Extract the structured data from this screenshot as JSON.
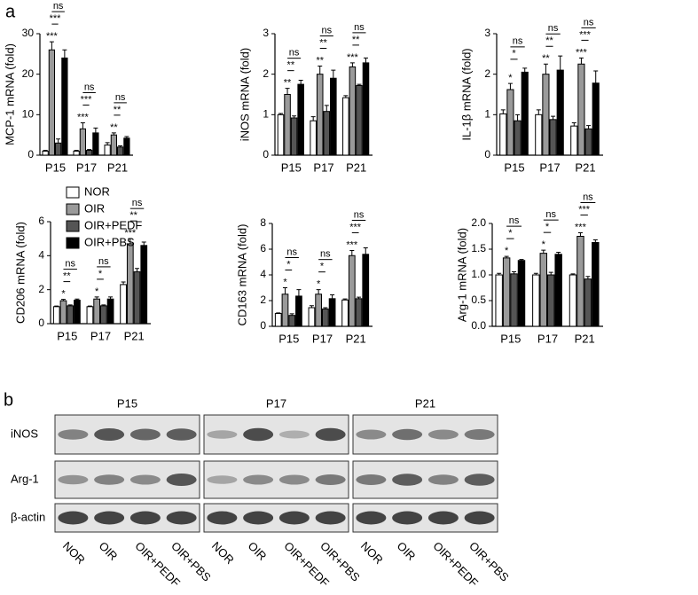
{
  "panel_labels": [
    "a",
    "b"
  ],
  "legend": [
    {
      "name": "NOR",
      "color": "#ffffff"
    },
    {
      "name": "OIR",
      "color": "#9a9a9a"
    },
    {
      "name": "OIR+PEDF",
      "color": "#555555"
    },
    {
      "name": "OIR+PBS",
      "color": "#000000"
    }
  ],
  "chart_data": [
    {
      "type": "bar",
      "ylabel": "MCP-1 mRNA (fold)",
      "categories": [
        "P15",
        "P17",
        "P21"
      ],
      "ylim": [
        0,
        30
      ],
      "yticks": [
        0,
        10,
        20,
        30
      ],
      "series": [
        {
          "values": [
            1,
            1,
            2.5
          ],
          "errors": [
            0.2,
            0.2,
            0.6
          ]
        },
        {
          "values": [
            26,
            6.5,
            5
          ],
          "errors": [
            2,
            1.5,
            0.5
          ]
        },
        {
          "values": [
            3,
            1.2,
            2
          ],
          "errors": [
            1,
            0.2,
            0.3
          ]
        },
        {
          "values": [
            24,
            5.5,
            4.2
          ],
          "errors": [
            2,
            1.2,
            0.4
          ]
        }
      ],
      "significance": [
        {
          "vs_nor": "***",
          "vs_pedf": "***",
          "vs_pbs": "ns"
        },
        {
          "vs_nor": "***",
          "vs_pedf": "***",
          "vs_pbs": "ns"
        },
        {
          "vs_nor": "**",
          "vs_pedf": "**",
          "vs_pbs": "ns"
        }
      ]
    },
    {
      "type": "bar",
      "ylabel": "iNOS mRNA (fold)",
      "categories": [
        "P15",
        "P17",
        "P21"
      ],
      "ylim": [
        0,
        3
      ],
      "yticks": [
        0,
        1,
        2,
        3
      ],
      "series": [
        {
          "values": [
            1.0,
            0.85,
            1.42
          ],
          "errors": [
            0.03,
            0.1,
            0.05
          ]
        },
        {
          "values": [
            1.5,
            2.0,
            2.18
          ],
          "errors": [
            0.15,
            0.2,
            0.1
          ]
        },
        {
          "values": [
            0.92,
            1.08,
            1.72
          ],
          "errors": [
            0.05,
            0.15,
            0.03
          ]
        },
        {
          "values": [
            1.75,
            1.9,
            2.28
          ],
          "errors": [
            0.1,
            0.2,
            0.12
          ]
        }
      ],
      "significance": [
        {
          "vs_nor": "**",
          "vs_pedf": "**",
          "vs_pbs": "ns"
        },
        {
          "vs_nor": "**",
          "vs_pedf": "**",
          "vs_pbs": "ns"
        },
        {
          "vs_nor": "***",
          "vs_pedf": "**",
          "vs_pbs": "ns"
        }
      ]
    },
    {
      "type": "bar",
      "ylabel": "IL-1β mRNA (fold)",
      "categories": [
        "P15",
        "P17",
        "P21"
      ],
      "ylim": [
        0,
        3
      ],
      "yticks": [
        0,
        1,
        2,
        3
      ],
      "series": [
        {
          "values": [
            1.02,
            1.0,
            0.72
          ],
          "errors": [
            0.1,
            0.12,
            0.08
          ]
        },
        {
          "values": [
            1.62,
            2.0,
            2.25
          ],
          "errors": [
            0.15,
            0.25,
            0.15
          ]
        },
        {
          "values": [
            0.85,
            0.88,
            0.65
          ],
          "errors": [
            0.15,
            0.08,
            0.08
          ]
        },
        {
          "values": [
            2.05,
            2.1,
            1.78
          ],
          "errors": [
            0.1,
            0.35,
            0.3
          ]
        }
      ],
      "significance": [
        {
          "vs_nor": "*",
          "vs_pedf": "*",
          "vs_pbs": "ns"
        },
        {
          "vs_nor": "**",
          "vs_pedf": "**",
          "vs_pbs": "ns"
        },
        {
          "vs_nor": "***",
          "vs_pedf": "***",
          "vs_pbs": "ns"
        }
      ]
    },
    {
      "type": "bar",
      "ylabel": "CD206 mRNA (fold)",
      "categories": [
        "P15",
        "P17",
        "P21"
      ],
      "ylim": [
        0,
        6
      ],
      "yticks": [
        0,
        2,
        4,
        6
      ],
      "series": [
        {
          "values": [
            1.0,
            1.0,
            2.3
          ],
          "errors": [
            0.04,
            0.04,
            0.15
          ]
        },
        {
          "values": [
            1.35,
            1.45,
            4.7
          ],
          "errors": [
            0.08,
            0.12,
            0.3
          ]
        },
        {
          "values": [
            1.05,
            1.05,
            3.05
          ],
          "errors": [
            0.05,
            0.05,
            0.2
          ]
        },
        {
          "values": [
            1.38,
            1.45,
            4.6
          ],
          "errors": [
            0.07,
            0.12,
            0.2
          ]
        }
      ],
      "significance": [
        {
          "vs_nor": "*",
          "vs_pedf": "**",
          "vs_pbs": "ns"
        },
        {
          "vs_nor": "*",
          "vs_pedf": "*",
          "vs_pbs": "ns"
        },
        {
          "vs_nor": "***",
          "vs_pedf": "**",
          "vs_pbs": "ns"
        }
      ]
    },
    {
      "type": "bar",
      "ylabel": "CD163 mRNA (fold)",
      "categories": [
        "P15",
        "P17",
        "P21"
      ],
      "ylim": [
        0,
        8
      ],
      "yticks": [
        0,
        2,
        4,
        6,
        8
      ],
      "series": [
        {
          "values": [
            1.0,
            1.45,
            2.05
          ],
          "errors": [
            0.04,
            0.15,
            0.08
          ]
        },
        {
          "values": [
            2.5,
            2.5,
            5.5
          ],
          "errors": [
            0.5,
            0.35,
            0.4
          ]
        },
        {
          "values": [
            0.85,
            1.35,
            2.15
          ],
          "errors": [
            0.12,
            0.1,
            0.12
          ]
        },
        {
          "values": [
            2.35,
            2.15,
            5.6
          ],
          "errors": [
            0.5,
            0.3,
            0.5
          ]
        }
      ],
      "significance": [
        {
          "vs_nor": "*",
          "vs_pedf": "*",
          "vs_pbs": "ns"
        },
        {
          "vs_nor": "*",
          "vs_pedf": "*",
          "vs_pbs": "ns"
        },
        {
          "vs_nor": "***",
          "vs_pedf": "***",
          "vs_pbs": "ns"
        }
      ]
    },
    {
      "type": "bar",
      "ylabel": "Arg-1 mRNA (fold)",
      "categories": [
        "P15",
        "P17",
        "P21"
      ],
      "ylim": [
        0,
        2
      ],
      "yticks": [
        {
          "value": 0,
          "label": "0.0"
        },
        0.5,
        {
          "value": 1,
          "label": "1.0"
        },
        1.5,
        {
          "value": 2,
          "label": "2.0"
        }
      ],
      "series": [
        {
          "values": [
            1.0,
            1.0,
            1.0
          ],
          "errors": [
            0.03,
            0.03,
            0.02
          ]
        },
        {
          "values": [
            1.33,
            1.42,
            1.75
          ],
          "errors": [
            0.03,
            0.06,
            0.07
          ]
        },
        {
          "values": [
            1.02,
            1.0,
            0.92
          ],
          "errors": [
            0.04,
            0.05,
            0.05
          ]
        },
        {
          "values": [
            1.28,
            1.4,
            1.63
          ],
          "errors": [
            0.02,
            0.04,
            0.05
          ]
        }
      ],
      "significance": [
        {
          "vs_nor": "*",
          "vs_pedf": "*",
          "vs_pbs": "ns"
        },
        {
          "vs_nor": "*",
          "vs_pedf": "*",
          "vs_pbs": "ns"
        },
        {
          "vs_nor": "***",
          "vs_pedf": "***",
          "vs_pbs": "ns"
        }
      ]
    }
  ],
  "blot": {
    "groups": [
      "P15",
      "P17",
      "P21"
    ],
    "rows": [
      "iNOS",
      "Arg-1",
      "β-actin"
    ],
    "lanes": [
      "NOR",
      "OIR",
      "OIR+PEDF",
      "OIR+PBS"
    ]
  }
}
